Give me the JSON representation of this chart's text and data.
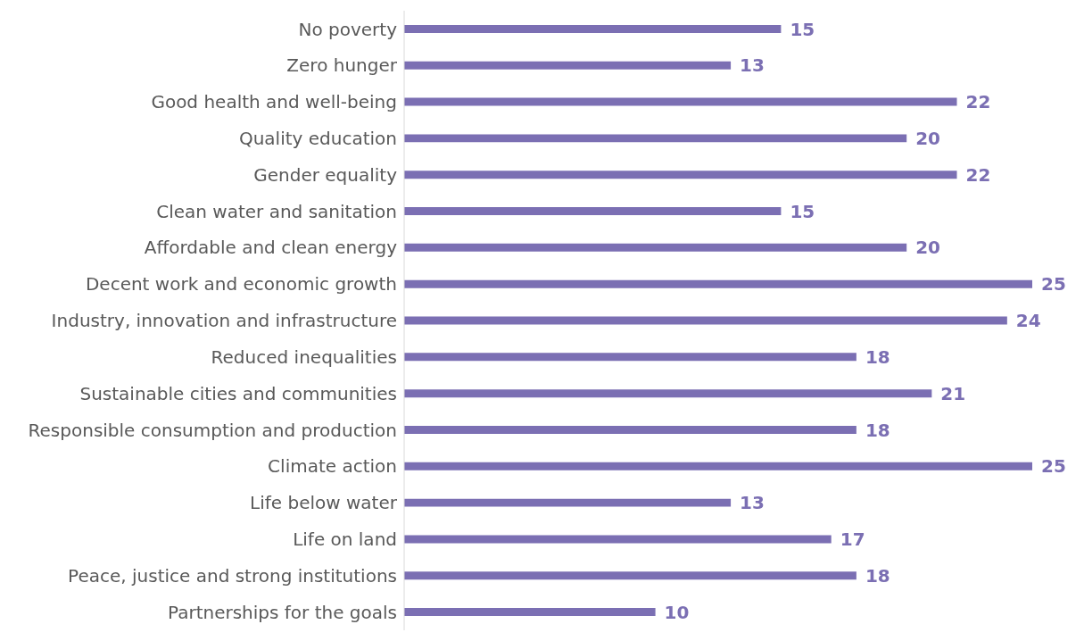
{
  "chart_data": {
    "type": "bar",
    "orientation": "horizontal",
    "data_labels": true,
    "color": "#7b6fb3",
    "categories": [
      "No poverty",
      "Zero hunger",
      "Good health and well-being",
      "Quality education",
      "Gender equality",
      "Clean water and sanitation",
      "Affordable and clean energy",
      "Decent work and economic growth",
      "Industry, innovation and infrastructure",
      "Reduced inequalities",
      "Sustainable cities and communities",
      "Responsible consumption and production",
      "Climate action",
      "Life below water",
      "Life on land",
      "Peace, justice and strong institutions",
      "Partnerships for the goals"
    ],
    "values": [
      15,
      13,
      22,
      20,
      22,
      15,
      20,
      25,
      24,
      18,
      21,
      18,
      25,
      13,
      17,
      18,
      10
    ]
  }
}
